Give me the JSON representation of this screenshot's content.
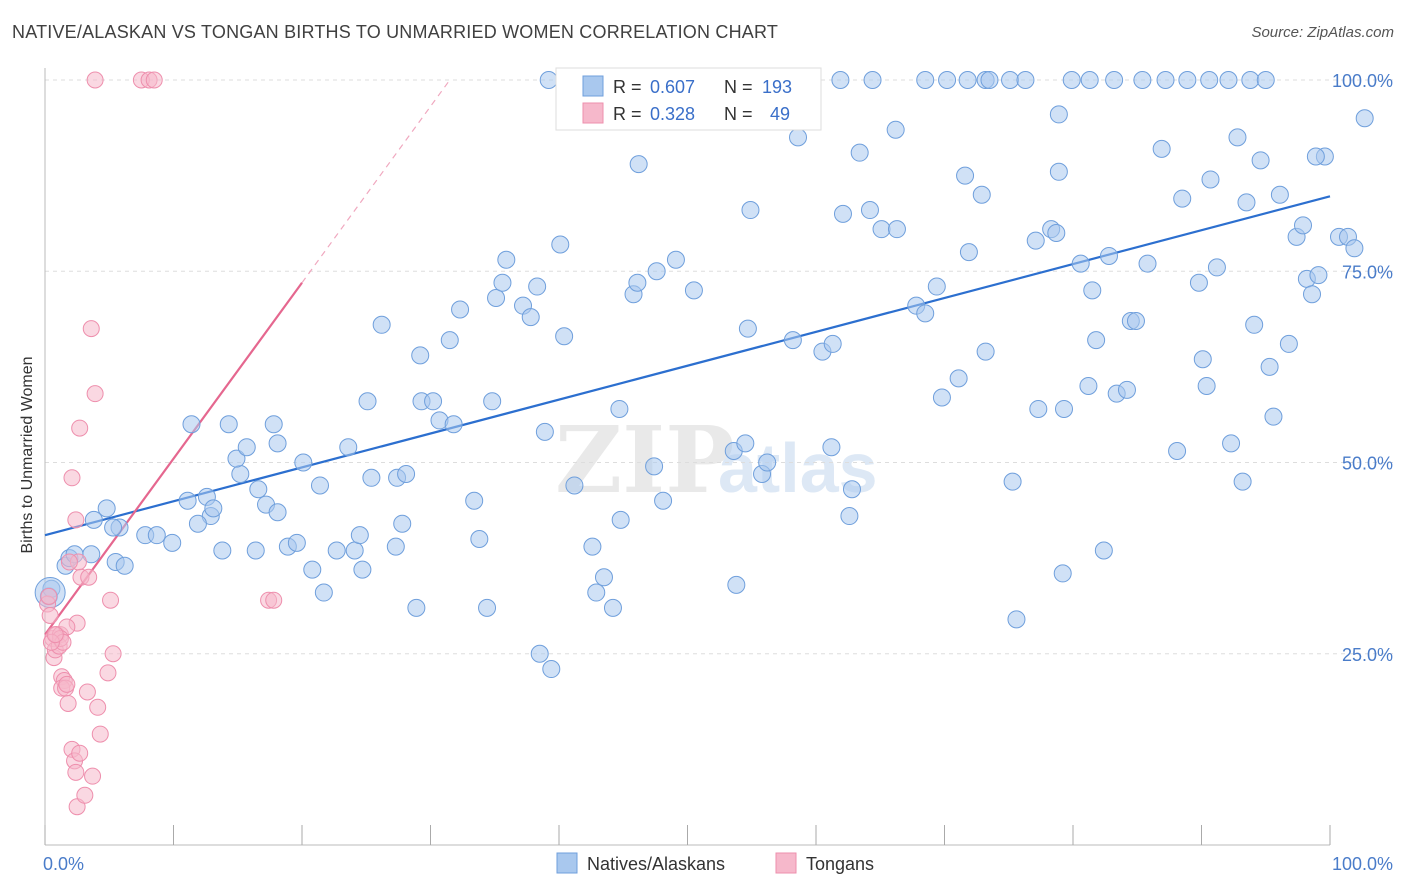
{
  "title": "NATIVE/ALASKAN VS TONGAN BIRTHS TO UNMARRIED WOMEN CORRELATION CHART",
  "source": "Source: ZipAtlas.com",
  "watermark": {
    "zip": "ZIP",
    "atlas": "atlas"
  },
  "colors": {
    "blue_fill": "#a9c8ee",
    "blue_stroke": "#6f9fdc",
    "blue_line": "#2c6fcf",
    "pink_fill": "#f6b8cb",
    "pink_stroke": "#ee8fad",
    "pink_line": "#e5678f",
    "grid": "#dddddd",
    "axis_text": "#4a7cc9"
  },
  "legend": {
    "rows": [
      {
        "r_label": "R = ",
        "r_value": "0.607",
        "n_label": "N = ",
        "n_value": "193",
        "color": "#a9c8ee"
      },
      {
        "r_label": "R = ",
        "r_value": "0.328",
        "n_label": "N = ",
        "n_value": "49",
        "color": "#f6b8cb"
      }
    ]
  },
  "chart_data": {
    "type": "scatter",
    "title": "NATIVE/ALASKAN VS TONGAN BIRTHS TO UNMARRIED WOMEN CORRELATION CHART",
    "xlabel": "",
    "ylabel": "Births to Unmarried Women",
    "xlim": [
      0,
      100
    ],
    "ylim": [
      0,
      100
    ],
    "x_tick_labels": [
      "0.0%",
      "100.0%"
    ],
    "y_ticks": [
      25,
      50,
      75,
      100
    ],
    "y_tick_labels": [
      "25.0%",
      "50.0%",
      "75.0%",
      "100.0%"
    ],
    "grid": true,
    "legend_position": "bottom-center",
    "series": [
      {
        "name": "Natives/Alaskans",
        "color": "#a9c8ee",
        "trend": {
          "x": [
            0,
            100
          ],
          "y": [
            40.5,
            84.8
          ]
        },
        "points": [
          [
            0.3,
            32.5
          ],
          [
            0.5,
            33.5
          ],
          [
            1.6,
            36.5
          ],
          [
            1.9,
            37.5
          ],
          [
            3.6,
            38
          ],
          [
            2.3,
            38
          ],
          [
            5.5,
            37
          ],
          [
            6.2,
            36.5
          ],
          [
            5.8,
            41.5
          ],
          [
            7.8,
            40.5
          ],
          [
            4.8,
            44
          ],
          [
            5.3,
            41.5
          ],
          [
            3.8,
            42.5
          ],
          [
            8.7,
            40.5
          ],
          [
            9.9,
            39.5
          ],
          [
            11.1,
            45
          ],
          [
            12.6,
            45.5
          ],
          [
            12.9,
            43
          ],
          [
            11.9,
            42
          ],
          [
            13.1,
            44
          ],
          [
            13.8,
            38.5
          ],
          [
            16.4,
            38.5
          ],
          [
            16.6,
            46.5
          ],
          [
            17.2,
            44.5
          ],
          [
            18.1,
            43.5
          ],
          [
            18.9,
            39
          ],
          [
            19.6,
            39.5
          ],
          [
            20.8,
            36
          ],
          [
            21.4,
            47
          ],
          [
            21.7,
            33
          ],
          [
            20.1,
            50
          ],
          [
            18.1,
            52.5
          ],
          [
            17.8,
            55
          ],
          [
            15.2,
            48.5
          ],
          [
            14.9,
            50.5
          ],
          [
            15.7,
            52
          ],
          [
            14.3,
            55
          ],
          [
            11.4,
            55
          ],
          [
            23.6,
            52
          ],
          [
            22.7,
            38.5
          ],
          [
            24.1,
            38.5
          ],
          [
            24.5,
            40.5
          ],
          [
            24.7,
            36
          ],
          [
            25.4,
            48
          ],
          [
            25.1,
            58
          ],
          [
            26.2,
            68
          ],
          [
            27.4,
            48
          ],
          [
            27.3,
            39
          ],
          [
            27.8,
            42
          ],
          [
            28.1,
            48.5
          ],
          [
            28.9,
            31
          ],
          [
            29.3,
            58
          ],
          [
            30.2,
            58
          ],
          [
            29.2,
            64
          ],
          [
            30.7,
            55.5
          ],
          [
            31.8,
            55
          ],
          [
            32.3,
            70
          ],
          [
            31.5,
            66
          ],
          [
            33.4,
            45
          ],
          [
            33.8,
            40
          ],
          [
            34.4,
            31
          ],
          [
            34.8,
            58
          ],
          [
            35.1,
            71.5
          ],
          [
            35.6,
            73.5
          ],
          [
            35.9,
            76.5
          ],
          [
            37.2,
            70.5
          ],
          [
            37.8,
            69
          ],
          [
            38.3,
            73
          ],
          [
            38.5,
            25
          ],
          [
            38.9,
            54
          ],
          [
            39.4,
            23
          ],
          [
            40.1,
            78.5
          ],
          [
            40.4,
            66.5
          ],
          [
            41.2,
            47
          ],
          [
            42.6,
            39
          ],
          [
            42.9,
            33
          ],
          [
            43.5,
            35
          ],
          [
            44.2,
            31
          ],
          [
            44.8,
            42.5
          ],
          [
            44.7,
            57
          ],
          [
            45.8,
            72
          ],
          [
            46.1,
            73.5
          ],
          [
            46.2,
            89
          ],
          [
            47.4,
            49.5
          ],
          [
            47.6,
            75
          ],
          [
            48.1,
            45
          ],
          [
            49.1,
            76.5
          ],
          [
            50.5,
            72.5
          ],
          [
            53.6,
            51.5
          ],
          [
            53.8,
            34
          ],
          [
            54.5,
            52.5
          ],
          [
            54.7,
            67.5
          ],
          [
            54.9,
            83
          ],
          [
            55.8,
            48.5
          ],
          [
            56.2,
            50
          ],
          [
            58.2,
            66
          ],
          [
            58.6,
            92.5
          ],
          [
            60.5,
            64.5
          ],
          [
            61.2,
            52
          ],
          [
            61.3,
            65.5
          ],
          [
            62.1,
            82.5
          ],
          [
            62.6,
            43
          ],
          [
            62.8,
            46.5
          ],
          [
            63.4,
            90.5
          ],
          [
            64.2,
            83
          ],
          [
            65.1,
            80.5
          ],
          [
            66.3,
            80.5
          ],
          [
            66.2,
            93.5
          ],
          [
            67.8,
            70.5
          ],
          [
            68.5,
            69.5
          ],
          [
            69.4,
            73
          ],
          [
            69.8,
            58.5
          ],
          [
            71.1,
            61
          ],
          [
            71.6,
            87.5
          ],
          [
            71.9,
            77.5
          ],
          [
            72.9,
            85
          ],
          [
            73.2,
            64.5
          ],
          [
            75.3,
            47.5
          ],
          [
            75.6,
            29.5
          ],
          [
            77.1,
            79
          ],
          [
            77.3,
            57
          ],
          [
            78.3,
            80.5
          ],
          [
            78.7,
            80
          ],
          [
            78.9,
            95.5
          ],
          [
            78.9,
            88
          ],
          [
            79.2,
            35.5
          ],
          [
            79.3,
            57
          ],
          [
            80.6,
            76
          ],
          [
            81.2,
            60
          ],
          [
            81.5,
            72.5
          ],
          [
            81.8,
            66
          ],
          [
            82.4,
            38.5
          ],
          [
            82.8,
            77
          ],
          [
            83.4,
            59
          ],
          [
            84.2,
            59.5
          ],
          [
            84.5,
            68.5
          ],
          [
            84.9,
            68.5
          ],
          [
            85.8,
            76
          ],
          [
            86.9,
            91
          ],
          [
            88.1,
            51.5
          ],
          [
            88.5,
            84.5
          ],
          [
            89.8,
            73.5
          ],
          [
            90.1,
            63.5
          ],
          [
            90.4,
            60
          ],
          [
            90.7,
            87
          ],
          [
            91.2,
            75.5
          ],
          [
            92.3,
            52.5
          ],
          [
            92.8,
            92.5
          ],
          [
            93.2,
            47.5
          ],
          [
            93.5,
            84
          ],
          [
            94.1,
            68
          ],
          [
            94.6,
            89.5
          ],
          [
            95.3,
            62.5
          ],
          [
            95.6,
            56
          ],
          [
            96.1,
            85
          ],
          [
            96.8,
            65.5
          ],
          [
            97.4,
            79.5
          ],
          [
            97.9,
            81
          ],
          [
            98.2,
            74
          ],
          [
            98.6,
            72
          ],
          [
            99.1,
            74.5
          ],
          [
            99.6,
            90
          ],
          [
            100.7,
            79.5
          ],
          [
            101.4,
            79.5
          ],
          [
            101.9,
            78
          ],
          [
            102.7,
            95
          ],
          [
            98.9,
            90
          ],
          [
            39.2,
            100
          ],
          [
            43.2,
            100
          ],
          [
            44.1,
            100
          ],
          [
            46.3,
            100
          ],
          [
            47.1,
            100
          ],
          [
            52.8,
            100
          ],
          [
            54.1,
            100
          ],
          [
            61.9,
            100
          ],
          [
            64.4,
            100
          ],
          [
            68.5,
            100
          ],
          [
            70.2,
            100
          ],
          [
            71.8,
            100
          ],
          [
            73.2,
            100
          ],
          [
            73.5,
            100
          ],
          [
            75.1,
            100
          ],
          [
            76.3,
            100
          ],
          [
            79.9,
            100
          ],
          [
            81.3,
            100
          ],
          [
            83.2,
            100
          ],
          [
            85.4,
            100
          ],
          [
            87.2,
            100
          ],
          [
            88.9,
            100
          ],
          [
            90.6,
            100
          ],
          [
            92.1,
            100
          ],
          [
            93.8,
            100
          ],
          [
            95.0,
            100
          ]
        ]
      },
      {
        "name": "Tongans",
        "color": "#f6b8cb",
        "trend": {
          "x": [
            0,
            20
          ],
          "y": [
            27.5,
            73.5
          ]
        },
        "trend_dashed_extension": {
          "x": [
            20,
            31.5
          ],
          "y": [
            73.5,
            100
          ]
        },
        "points": [
          [
            0.2,
            31.5
          ],
          [
            0.4,
            30
          ],
          [
            0.3,
            32.5
          ],
          [
            0.6,
            27
          ],
          [
            0.9,
            27.5
          ],
          [
            1.2,
            27.5
          ],
          [
            0.7,
            24.5
          ],
          [
            0.8,
            25.5
          ],
          [
            1.1,
            26
          ],
          [
            1.3,
            22
          ],
          [
            1.5,
            21.5
          ],
          [
            1.3,
            20.5
          ],
          [
            1.6,
            20.5
          ],
          [
            1.7,
            21
          ],
          [
            1.8,
            18.5
          ],
          [
            2.1,
            12.5
          ],
          [
            2.3,
            11
          ],
          [
            2.4,
            9.5
          ],
          [
            2.5,
            5
          ],
          [
            2.7,
            12
          ],
          [
            3.1,
            6.5
          ],
          [
            3.3,
            20
          ],
          [
            3.7,
            9
          ],
          [
            4.1,
            18
          ],
          [
            4.3,
            14.5
          ],
          [
            3.9,
            59
          ],
          [
            3.6,
            67.5
          ],
          [
            2.7,
            54.5
          ],
          [
            2.1,
            48
          ],
          [
            2.4,
            42.5
          ],
          [
            2.6,
            37
          ],
          [
            2.8,
            35
          ],
          [
            3.4,
            35
          ],
          [
            1.9,
            37
          ],
          [
            2.5,
            29
          ],
          [
            1.7,
            28.5
          ],
          [
            4.9,
            22.5
          ],
          [
            5.3,
            25
          ],
          [
            5.1,
            32
          ],
          [
            17.4,
            32
          ],
          [
            17.8,
            32
          ],
          [
            3.9,
            100
          ],
          [
            7.5,
            100
          ],
          [
            8.1,
            100
          ],
          [
            8.5,
            100
          ],
          [
            1.2,
            27
          ],
          [
            1.4,
            26.5
          ],
          [
            0.5,
            26.5
          ],
          [
            0.8,
            27.5
          ]
        ]
      }
    ]
  },
  "bottom_legend": {
    "items": [
      {
        "label": "Natives/Alaskans",
        "color": "#a9c8ee"
      },
      {
        "label": "Tongans",
        "color": "#f6b8cb"
      }
    ]
  }
}
